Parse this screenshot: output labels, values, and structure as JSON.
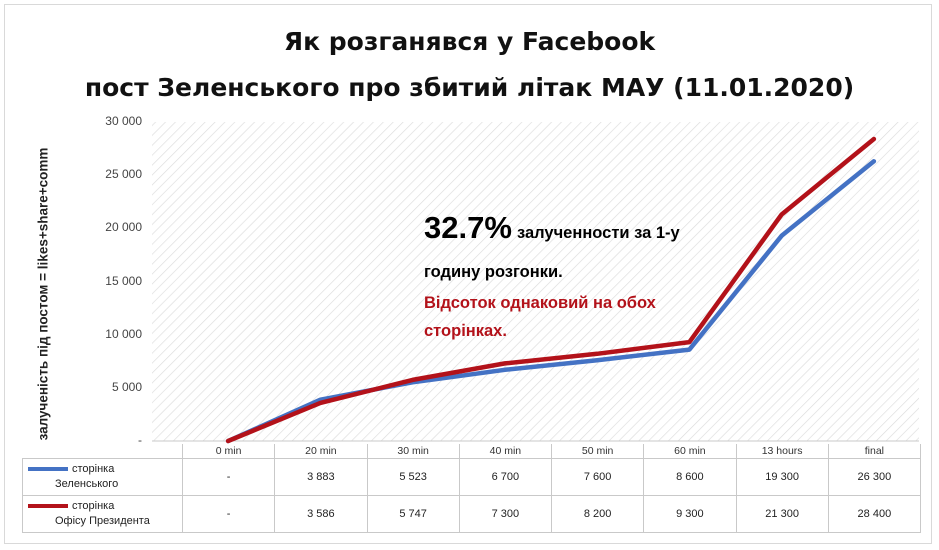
{
  "title_line1": "Як розганявся у Facebook",
  "title_line2": "пост Зеленського про збитий літак МАУ (11.01.2020)",
  "annotation": {
    "big": "32.7%",
    "rest": "залученности за 1-у",
    "line2": "годину розгонки.",
    "line3": "Відсоток однаковий на обох",
    "line4": "сторінках."
  },
  "colors": {
    "series1": "#4472c4",
    "series2": "#b3121a",
    "annotation_red": "#b3121a"
  },
  "chart_data": {
    "type": "line",
    "ylabel": "залученість під постом = likes+share+comm",
    "xlabel": "",
    "categories": [
      "0 min",
      "20 min",
      "30 min",
      "40 min",
      "50 min",
      "60 min",
      "13 hours",
      "final"
    ],
    "ylim": [
      0,
      30000
    ],
    "yticks": [
      "-",
      "5 000",
      "10 000",
      "15 000",
      "20 000",
      "25 000",
      "30 000"
    ],
    "grid": "hatched plot area",
    "legend_position": "in data table, left column",
    "series": [
      {
        "name_line1": "сторінка",
        "name_line2": "Зеленського",
        "color": "#4472c4",
        "values": [
          0,
          3883,
          5523,
          6700,
          7600,
          8600,
          19300,
          26300
        ],
        "labels": [
          "-",
          "3 883",
          "5 523",
          "6 700",
          "7 600",
          "8 600",
          "19 300",
          "26 300"
        ]
      },
      {
        "name_line1": "сторінка",
        "name_line2": "Офісу Президента",
        "color": "#b3121a",
        "values": [
          0,
          3586,
          5747,
          7300,
          8200,
          9300,
          21300,
          28400
        ],
        "labels": [
          "-",
          "3 586",
          "5 747",
          "7 300",
          "8 200",
          "9 300",
          "21 300",
          "28 400"
        ]
      }
    ]
  }
}
